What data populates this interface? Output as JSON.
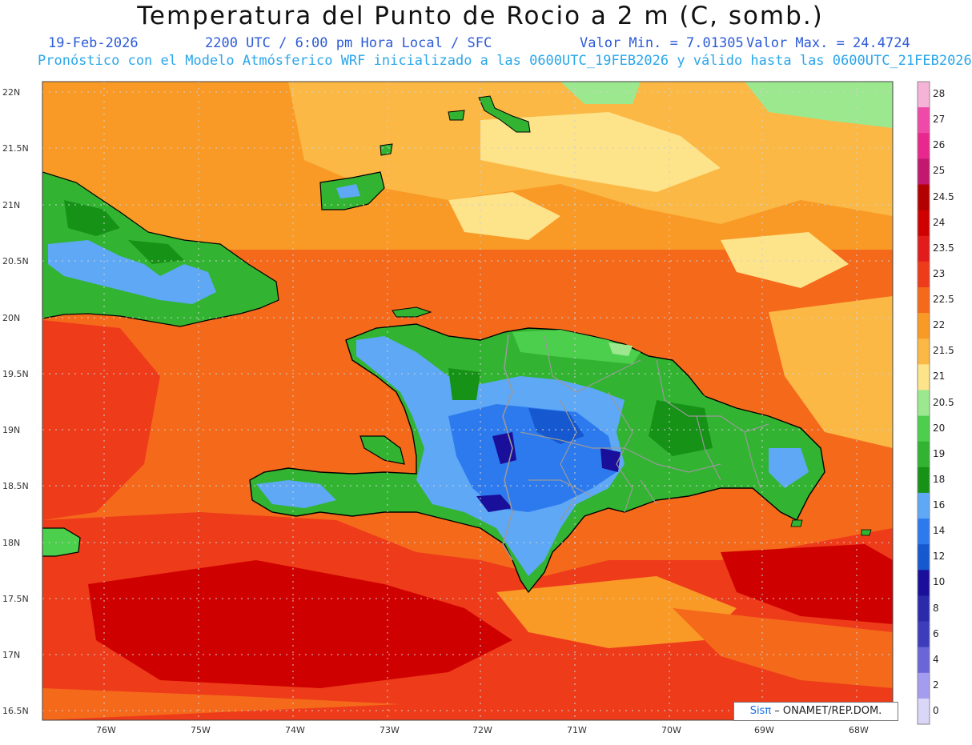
{
  "header": {
    "title": "Temperatura del Punto de Rocio a 2 m (C, somb.)",
    "date": "19-Feb-2026",
    "time": "2200 UTC / 6:00 pm Hora Local / SFC",
    "min_label": "Valor Min. = 7.01305",
    "max_label": "Valor Max. = 24.4724",
    "model_line": "Pronóstico con el Modelo Atmósferico WRF inicializado a las 0600UTC_19FEB2026 y válido hasta las  0600UTC_21FEB2026"
  },
  "map": {
    "lat_labels": [
      "22N",
      "21.5N",
      "21N",
      "20.5N",
      "20N",
      "19.5N",
      "19N",
      "18.5N",
      "18N",
      "17.5N",
      "17N",
      "16.5N"
    ],
    "lon_labels": [
      "76W",
      "75W",
      "74W",
      "73W",
      "72W",
      "71W",
      "70W",
      "69W",
      "68W"
    ],
    "credit_brand": "Sisπ",
    "credit_text": " – ONAMET/REP.DOM."
  },
  "colorbar": {
    "labels": [
      "28",
      "27",
      "26",
      "25",
      "24.5",
      "24",
      "23.5",
      "23",
      "22.5",
      "22",
      "21.5",
      "21",
      "20.5",
      "20",
      "19",
      "18",
      "16",
      "14",
      "12",
      "10",
      "8",
      "6",
      "4",
      "2",
      "0"
    ],
    "colors": [
      "#f4b3d7",
      "#f04aa9",
      "#e8288e",
      "#c21870",
      "#b30000",
      "#cf0000",
      "#e21b1b",
      "#ee3b1a",
      "#f5691b",
      "#f99a26",
      "#fbb845",
      "#fde38a",
      "#9ce88e",
      "#4ccf4c",
      "#32b432",
      "#169216",
      "#5ea8f5",
      "#2d7aee",
      "#1558cf",
      "#1a0f9a",
      "#2b2aab",
      "#3d3dbb",
      "#6b66d8",
      "#a49cee",
      "#dad6f7"
    ]
  }
}
